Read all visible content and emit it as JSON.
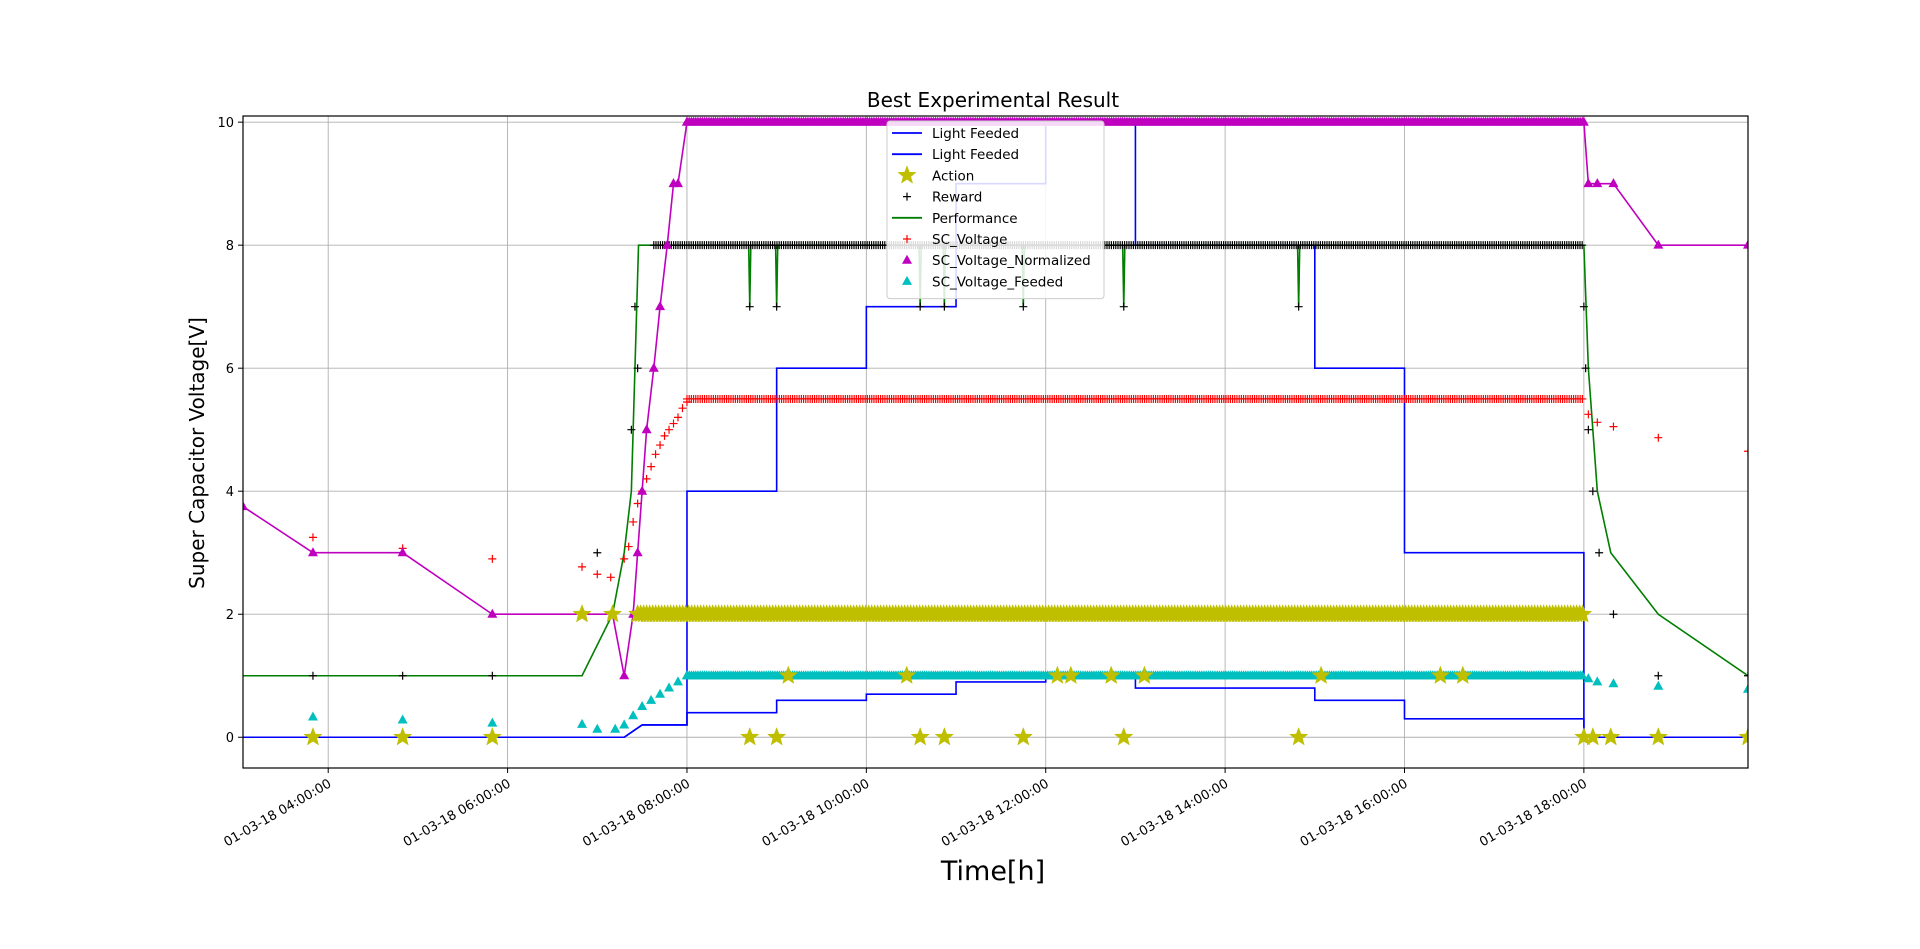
{
  "chart_data": {
    "type": "line",
    "title": "Best Experimental Result",
    "xlabel": "Time[h]",
    "ylabel": "Super Capacitor Voltage[V]",
    "x_unit": "hours (01-03-18)",
    "xlim": [
      3.05,
      19.83
    ],
    "ylim": [
      -0.5,
      10.1
    ],
    "grid": true,
    "legend_position": "upper center",
    "x_ticks": [
      {
        "value": 4,
        "label": "01-03-18 04:00:00"
      },
      {
        "value": 6,
        "label": "01-03-18 06:00:00"
      },
      {
        "value": 8,
        "label": "01-03-18 08:00:00"
      },
      {
        "value": 10,
        "label": "01-03-18 10:00:00"
      },
      {
        "value": 12,
        "label": "01-03-18 12:00:00"
      },
      {
        "value": 14,
        "label": "01-03-18 14:00:00"
      },
      {
        "value": 16,
        "label": "01-03-18 16:00:00"
      },
      {
        "value": 18,
        "label": "01-03-18 18:00:00"
      }
    ],
    "y_ticks": [
      {
        "value": 0,
        "label": "0"
      },
      {
        "value": 2,
        "label": "2"
      },
      {
        "value": 4,
        "label": "4"
      },
      {
        "value": 6,
        "label": "6"
      },
      {
        "value": 8,
        "label": "8"
      },
      {
        "value": 10,
        "label": "10"
      }
    ],
    "series": [
      {
        "name": "Light Feeded",
        "kind": "step",
        "color": "#0000ff",
        "points": [
          [
            3.05,
            0
          ],
          [
            7.3,
            0
          ],
          [
            7.5,
            0.2
          ],
          [
            8.0,
            0.2
          ],
          [
            8.0,
            0.4
          ],
          [
            9.0,
            0.4
          ],
          [
            9.0,
            0.6
          ],
          [
            10.0,
            0.6
          ],
          [
            10.0,
            0.7
          ],
          [
            11.0,
            0.7
          ],
          [
            11.0,
            0.9
          ],
          [
            12.0,
            0.9
          ],
          [
            12.0,
            1.0
          ],
          [
            13.0,
            1.0
          ],
          [
            13.0,
            0.8
          ],
          [
            15.0,
            0.8
          ],
          [
            15.0,
            0.6
          ],
          [
            16.0,
            0.6
          ],
          [
            16.0,
            0.3
          ],
          [
            18.0,
            0.3
          ],
          [
            18.0,
            0
          ],
          [
            19.83,
            0
          ]
        ]
      },
      {
        "name": "Light Feeded",
        "kind": "step",
        "color": "#0000ff",
        "points": [
          [
            3.05,
            0
          ],
          [
            7.3,
            0
          ],
          [
            7.5,
            0.2
          ],
          [
            8.0,
            0.2
          ],
          [
            8.0,
            4
          ],
          [
            9.0,
            4
          ],
          [
            9.0,
            6
          ],
          [
            10.0,
            6
          ],
          [
            10.0,
            7
          ],
          [
            11.0,
            7
          ],
          [
            11.0,
            9
          ],
          [
            12.0,
            9
          ],
          [
            12.0,
            10
          ],
          [
            13.0,
            10
          ],
          [
            13.0,
            8
          ],
          [
            15.0,
            8
          ],
          [
            15.0,
            6
          ],
          [
            16.0,
            6
          ],
          [
            16.0,
            3
          ],
          [
            18.0,
            3
          ],
          [
            18.0,
            0
          ],
          [
            19.83,
            0
          ]
        ]
      },
      {
        "name": "Action",
        "kind": "marker",
        "marker": "star",
        "color": "#bfbf00",
        "dense_segments": [
          {
            "from": 7.45,
            "to": 18.0,
            "y": 2
          }
        ],
        "points": [
          [
            3.83,
            0
          ],
          [
            4.83,
            0
          ],
          [
            5.83,
            0
          ],
          [
            6.83,
            2
          ],
          [
            7.17,
            2
          ],
          [
            7.45,
            2
          ],
          [
            8.7,
            0
          ],
          [
            9.0,
            0
          ],
          [
            9.13,
            1
          ],
          [
            10.45,
            1
          ],
          [
            10.6,
            0
          ],
          [
            10.87,
            0
          ],
          [
            11.75,
            0
          ],
          [
            12.13,
            1
          ],
          [
            12.28,
            1
          ],
          [
            12.73,
            1
          ],
          [
            12.87,
            0
          ],
          [
            13.1,
            1
          ],
          [
            14.82,
            0
          ],
          [
            15.07,
            1
          ],
          [
            16.4,
            1
          ],
          [
            16.65,
            1
          ],
          [
            18.0,
            0
          ],
          [
            18.1,
            0
          ],
          [
            18.3,
            0
          ],
          [
            18.83,
            0
          ],
          [
            19.83,
            0
          ]
        ]
      },
      {
        "name": "Reward",
        "kind": "marker",
        "marker": "plus",
        "color": "#000000",
        "dense_segments": [
          {
            "from": 7.63,
            "to": 18.0,
            "y": 8
          }
        ],
        "points": [
          [
            3.83,
            1
          ],
          [
            4.83,
            1
          ],
          [
            5.83,
            1
          ],
          [
            7.0,
            3
          ],
          [
            7.38,
            5
          ],
          [
            7.42,
            7
          ],
          [
            7.45,
            6
          ],
          [
            8.7,
            7
          ],
          [
            9.0,
            7
          ],
          [
            10.6,
            7
          ],
          [
            10.87,
            7
          ],
          [
            11.75,
            7
          ],
          [
            12.87,
            7
          ],
          [
            14.82,
            7
          ],
          [
            18.0,
            7
          ],
          [
            18.02,
            6
          ],
          [
            18.05,
            5
          ],
          [
            18.1,
            4
          ],
          [
            18.17,
            3
          ],
          [
            18.33,
            2
          ],
          [
            18.83,
            1
          ],
          [
            19.83,
            1
          ]
        ]
      },
      {
        "name": "Performance",
        "kind": "line",
        "color": "#007f00",
        "spikes": [
          8.7,
          9.0,
          10.6,
          10.87,
          11.75,
          12.87,
          14.82
        ],
        "spike_low": 7,
        "points": [
          [
            3.05,
            1
          ],
          [
            6.83,
            1
          ],
          [
            7.17,
            2
          ],
          [
            7.3,
            3
          ],
          [
            7.38,
            4
          ],
          [
            7.42,
            6
          ],
          [
            7.46,
            8
          ],
          [
            18.0,
            8
          ],
          [
            18.05,
            6
          ],
          [
            18.15,
            4
          ],
          [
            18.3,
            3
          ],
          [
            18.83,
            2
          ],
          [
            19.83,
            1
          ]
        ]
      },
      {
        "name": "SC_Voltage",
        "kind": "marker",
        "marker": "plus",
        "color": "#ff0000",
        "dense_segments": [
          {
            "from": 8.0,
            "to": 18.0,
            "y": 5.5
          }
        ],
        "points": [
          [
            3.83,
            3.25
          ],
          [
            4.83,
            3.07
          ],
          [
            5.83,
            2.9
          ],
          [
            6.83,
            2.77
          ],
          [
            7.0,
            2.65
          ],
          [
            7.15,
            2.6
          ],
          [
            7.3,
            2.9
          ],
          [
            7.35,
            3.1
          ],
          [
            7.4,
            3.5
          ],
          [
            7.45,
            3.8
          ],
          [
            7.5,
            4.0
          ],
          [
            7.55,
            4.2
          ],
          [
            7.6,
            4.4
          ],
          [
            7.65,
            4.6
          ],
          [
            7.7,
            4.75
          ],
          [
            7.75,
            4.9
          ],
          [
            7.8,
            5.0
          ],
          [
            7.85,
            5.1
          ],
          [
            7.9,
            5.2
          ],
          [
            7.95,
            5.35
          ],
          [
            8.0,
            5.45
          ],
          [
            18.05,
            5.25
          ],
          [
            18.15,
            5.12
          ],
          [
            18.33,
            5.05
          ],
          [
            18.83,
            4.87
          ],
          [
            19.83,
            4.65
          ]
        ]
      },
      {
        "name": "SC_Voltage_Normalized",
        "kind": "line+marker",
        "marker": "triangle",
        "color": "#bf00bf",
        "dense_segments": [
          {
            "from": 8.0,
            "to": 18.0,
            "y": 10
          }
        ],
        "points": [
          [
            3.05,
            3.75
          ],
          [
            3.83,
            3
          ],
          [
            4.83,
            3
          ],
          [
            5.83,
            2
          ],
          [
            6.83,
            2
          ],
          [
            7.17,
            2
          ],
          [
            7.3,
            1
          ],
          [
            7.4,
            2
          ],
          [
            7.45,
            3
          ],
          [
            7.5,
            4
          ],
          [
            7.55,
            5
          ],
          [
            7.63,
            6
          ],
          [
            7.7,
            7
          ],
          [
            7.78,
            8
          ],
          [
            7.85,
            9
          ],
          [
            7.9,
            9
          ],
          [
            8.0,
            10
          ],
          [
            18.0,
            10
          ],
          [
            18.05,
            9
          ],
          [
            18.15,
            9
          ],
          [
            18.33,
            9
          ],
          [
            18.83,
            8
          ],
          [
            19.83,
            8
          ]
        ]
      },
      {
        "name": "SC_Voltage_Feeded",
        "kind": "marker",
        "marker": "triangle",
        "color": "#00bfbf",
        "dense_segments": [
          {
            "from": 8.0,
            "to": 18.0,
            "y": 1
          }
        ],
        "points": [
          [
            3.83,
            0.33
          ],
          [
            4.83,
            0.28
          ],
          [
            5.83,
            0.23
          ],
          [
            6.83,
            0.21
          ],
          [
            7.0,
            0.13
          ],
          [
            7.2,
            0.13
          ],
          [
            7.3,
            0.2
          ],
          [
            7.4,
            0.35
          ],
          [
            7.5,
            0.5
          ],
          [
            7.6,
            0.6
          ],
          [
            7.7,
            0.7
          ],
          [
            7.8,
            0.8
          ],
          [
            7.9,
            0.9
          ],
          [
            8.0,
            1.0
          ],
          [
            18.05,
            0.95
          ],
          [
            18.15,
            0.9
          ],
          [
            18.33,
            0.87
          ],
          [
            18.83,
            0.83
          ],
          [
            19.83,
            0.78
          ]
        ]
      }
    ],
    "legend_entries": [
      {
        "label": "Light Feeded",
        "color": "#0000ff",
        "symbol": "line"
      },
      {
        "label": "Light Feeded",
        "color": "#0000ff",
        "symbol": "line"
      },
      {
        "label": "Action",
        "color": "#bfbf00",
        "symbol": "star"
      },
      {
        "label": "Reward",
        "color": "#000000",
        "symbol": "plus"
      },
      {
        "label": "Performance",
        "color": "#007f00",
        "symbol": "line"
      },
      {
        "label": "SC_Voltage",
        "color": "#ff0000",
        "symbol": "plus"
      },
      {
        "label": "SC_Voltage_Normalized",
        "color": "#bf00bf",
        "symbol": "triangle"
      },
      {
        "label": "SC_Voltage_Feeded",
        "color": "#00bfbf",
        "symbol": "triangle"
      }
    ]
  }
}
